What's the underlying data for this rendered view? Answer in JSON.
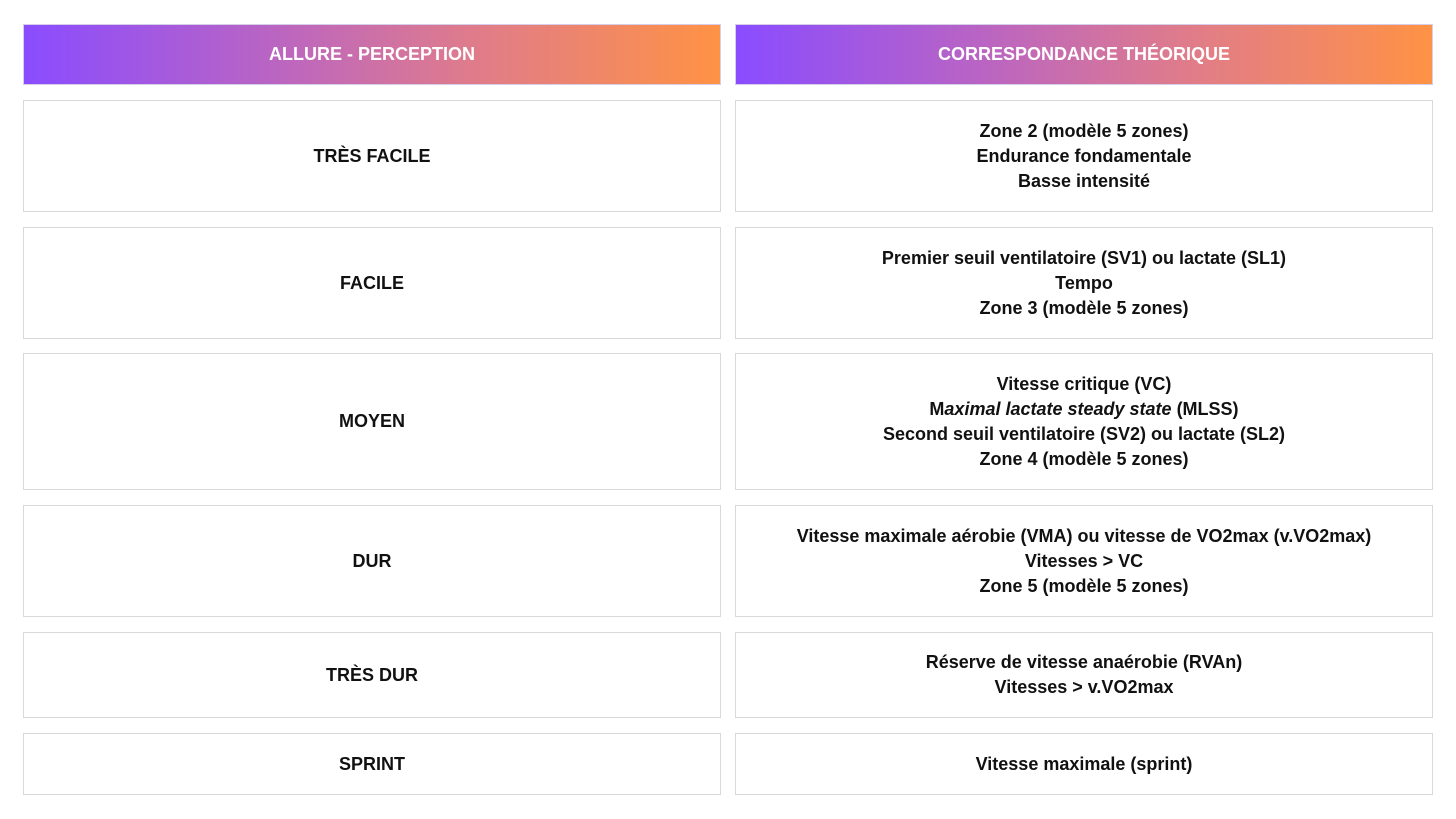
{
  "headers": {
    "left": "ALLURE - PERCEPTION",
    "right": "CORRESPONDANCE THÉORIQUE"
  },
  "colors": {
    "header_gradient_start": "#8a4cff",
    "header_gradient_end": "#ff9245",
    "border": "#d9d9d9"
  },
  "rows": [
    {
      "perception": "TRÈS FACILE",
      "lines": [
        "Zone 2 (modèle 5 zones)",
        "Endurance fondamentale",
        "Basse intensité"
      ]
    },
    {
      "perception": "FACILE",
      "lines": [
        "Premier seuil ventilatoire (SV1) ou lactate (SL1)",
        "Tempo",
        "Zone 3 (modèle 5 zones)"
      ]
    },
    {
      "perception": "MOYEN",
      "lines": [
        "Vitesse critique (VC)",
        "Second seuil ventilatoire (SV2) ou lactate (SL2)",
        "Zone 4 (modèle 5 zones)"
      ],
      "mlss": {
        "prefix": "M",
        "italic": "aximal lactate steady state",
        "suffix": " (MLSS)"
      }
    },
    {
      "perception": "DUR",
      "lines": [
        "Vitesse maximale aérobie (VMA) ou vitesse de VO2max (v.VO2max)",
        "Vitesses > VC",
        "Zone 5 (modèle 5 zones)"
      ]
    },
    {
      "perception": "TRÈS DUR",
      "lines": [
        "Réserve de vitesse anaérobie (RVAn)",
        "Vitesses > v.VO2max"
      ]
    },
    {
      "perception": "SPRINT",
      "lines": [
        "Vitesse maximale (sprint)"
      ]
    }
  ]
}
